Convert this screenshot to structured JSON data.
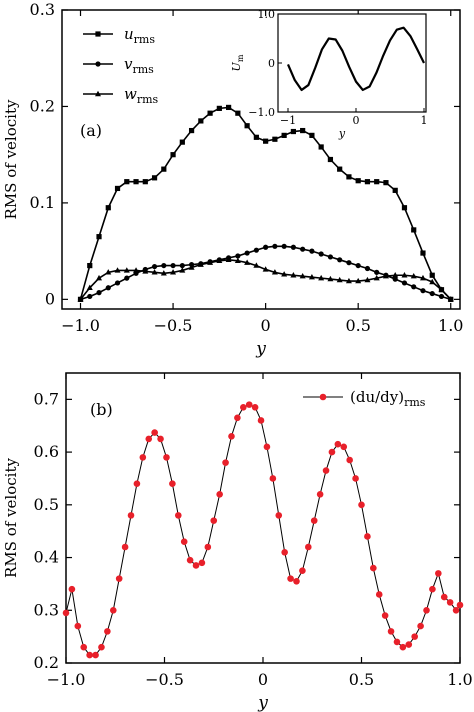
{
  "chart_data": [
    {
      "type": "line",
      "panel_label": "(a)",
      "xlabel": "y",
      "ylabel": "RMS of velocity",
      "xlim": [
        -1.1,
        1.05
      ],
      "ylim": [
        -0.01,
        0.3
      ],
      "xticks": [
        -1.0,
        -0.5,
        0,
        0.5,
        1.0
      ],
      "xtick_labels": [
        "−1.0",
        "−0.5",
        "0",
        "0.5",
        "1.0"
      ],
      "yticks": [
        0,
        0.1,
        0.2,
        0.3
      ],
      "ytick_labels": [
        "0",
        "0.1",
        "0.2",
        "0.3"
      ],
      "legend_position": "top-left",
      "series": [
        {
          "name": "u",
          "name_sub": "rms",
          "marker": "square",
          "x": [
            -1.0,
            -0.95,
            -0.9,
            -0.85,
            -0.8,
            -0.75,
            -0.7,
            -0.65,
            -0.6,
            -0.55,
            -0.5,
            -0.45,
            -0.4,
            -0.35,
            -0.3,
            -0.25,
            -0.2,
            -0.15,
            -0.1,
            -0.05,
            0,
            0.05,
            0.1,
            0.15,
            0.2,
            0.25,
            0.3,
            0.35,
            0.4,
            0.45,
            0.5,
            0.55,
            0.6,
            0.65,
            0.7,
            0.75,
            0.8,
            0.85,
            0.9,
            0.95,
            1.0
          ],
          "y": [
            0,
            0.035,
            0.065,
            0.095,
            0.115,
            0.122,
            0.122,
            0.122,
            0.126,
            0.135,
            0.15,
            0.163,
            0.175,
            0.185,
            0.193,
            0.198,
            0.199,
            0.193,
            0.18,
            0.168,
            0.164,
            0.166,
            0.17,
            0.174,
            0.175,
            0.17,
            0.158,
            0.145,
            0.135,
            0.127,
            0.123,
            0.122,
            0.122,
            0.121,
            0.113,
            0.095,
            0.072,
            0.048,
            0.025,
            0.01,
            0
          ]
        },
        {
          "name": "v",
          "name_sub": "rms",
          "marker": "circle",
          "x": [
            -1.0,
            -0.95,
            -0.9,
            -0.85,
            -0.8,
            -0.75,
            -0.7,
            -0.65,
            -0.6,
            -0.55,
            -0.5,
            -0.45,
            -0.4,
            -0.35,
            -0.3,
            -0.25,
            -0.2,
            -0.15,
            -0.1,
            -0.05,
            0,
            0.05,
            0.1,
            0.15,
            0.2,
            0.25,
            0.3,
            0.35,
            0.4,
            0.45,
            0.5,
            0.55,
            0.6,
            0.65,
            0.7,
            0.75,
            0.8,
            0.85,
            0.9,
            0.95,
            1.0
          ],
          "y": [
            0,
            0.003,
            0.007,
            0.012,
            0.017,
            0.022,
            0.027,
            0.031,
            0.034,
            0.035,
            0.035,
            0.035,
            0.036,
            0.037,
            0.039,
            0.041,
            0.043,
            0.045,
            0.048,
            0.051,
            0.054,
            0.055,
            0.055,
            0.054,
            0.052,
            0.05,
            0.047,
            0.044,
            0.041,
            0.038,
            0.035,
            0.032,
            0.028,
            0.025,
            0.021,
            0.017,
            0.013,
            0.009,
            0.006,
            0.003,
            0
          ]
        },
        {
          "name": "w",
          "name_sub": "rms",
          "marker": "triangle",
          "x": [
            -1.0,
            -0.95,
            -0.9,
            -0.85,
            -0.8,
            -0.75,
            -0.7,
            -0.65,
            -0.6,
            -0.55,
            -0.5,
            -0.45,
            -0.4,
            -0.35,
            -0.3,
            -0.25,
            -0.2,
            -0.15,
            -0.1,
            -0.05,
            0,
            0.05,
            0.1,
            0.15,
            0.2,
            0.25,
            0.3,
            0.35,
            0.4,
            0.45,
            0.5,
            0.55,
            0.6,
            0.65,
            0.7,
            0.75,
            0.8,
            0.85,
            0.9,
            0.95,
            1.0
          ],
          "y": [
            0,
            0.012,
            0.022,
            0.028,
            0.03,
            0.03,
            0.03,
            0.029,
            0.028,
            0.027,
            0.028,
            0.03,
            0.033,
            0.036,
            0.038,
            0.04,
            0.041,
            0.04,
            0.038,
            0.035,
            0.031,
            0.028,
            0.026,
            0.025,
            0.024,
            0.023,
            0.022,
            0.021,
            0.02,
            0.019,
            0.019,
            0.02,
            0.022,
            0.024,
            0.025,
            0.025,
            0.024,
            0.022,
            0.018,
            0.01,
            0
          ]
        }
      ],
      "inset": {
        "ylabel": "U",
        "ylabel_sub": "m",
        "xlabel": "y",
        "xlim": [
          -1,
          1
        ],
        "ylim": [
          -1,
          1
        ],
        "xtick_labels": [
          "−1",
          "0",
          "1"
        ],
        "ytick_labels": [
          "1.0",
          "0",
          "−1.0"
        ],
        "x": [
          -1.0,
          -0.9,
          -0.8,
          -0.7,
          -0.6,
          -0.5,
          -0.4,
          -0.3,
          -0.2,
          -0.1,
          0,
          0.1,
          0.2,
          0.3,
          0.4,
          0.5,
          0.6,
          0.7,
          0.8,
          0.9,
          1.0
        ],
        "y": [
          -0.03,
          -0.35,
          -0.55,
          -0.45,
          -0.1,
          0.28,
          0.5,
          0.48,
          0.25,
          -0.08,
          -0.38,
          -0.55,
          -0.48,
          -0.2,
          0.15,
          0.46,
          0.68,
          0.72,
          0.55,
          0.28,
          0
        ]
      }
    },
    {
      "type": "line",
      "panel_label": "(b)",
      "xlabel": "y",
      "ylabel": "RMS of velocity",
      "xlim": [
        -1.0,
        1.0
      ],
      "ylim": [
        0.2,
        0.75
      ],
      "xticks": [
        -1.0,
        -0.5,
        0,
        0.5,
        1.0
      ],
      "xtick_labels": [
        "−1.0",
        "−0.5",
        "0",
        "0.5",
        "1.0"
      ],
      "yticks": [
        0.2,
        0.3,
        0.4,
        0.5,
        0.6,
        0.7
      ],
      "ytick_labels": [
        "0.2",
        "0.3",
        "0.4",
        "0.5",
        "0.6",
        "0.7"
      ],
      "legend_position": "top-right",
      "series": [
        {
          "name": "(du/dy)",
          "name_sub": "rms",
          "marker": "circle",
          "color": "#e8202a",
          "x": [
            -1.0,
            -0.97,
            -0.94,
            -0.91,
            -0.88,
            -0.85,
            -0.82,
            -0.79,
            -0.76,
            -0.73,
            -0.7,
            -0.67,
            -0.64,
            -0.61,
            -0.58,
            -0.55,
            -0.52,
            -0.49,
            -0.46,
            -0.43,
            -0.4,
            -0.37,
            -0.34,
            -0.31,
            -0.28,
            -0.25,
            -0.22,
            -0.19,
            -0.16,
            -0.13,
            -0.1,
            -0.07,
            -0.04,
            -0.01,
            0.02,
            0.05,
            0.08,
            0.11,
            0.14,
            0.17,
            0.2,
            0.23,
            0.26,
            0.29,
            0.32,
            0.35,
            0.38,
            0.41,
            0.44,
            0.47,
            0.5,
            0.53,
            0.56,
            0.59,
            0.62,
            0.65,
            0.68,
            0.71,
            0.74,
            0.77,
            0.8,
            0.83,
            0.86,
            0.89,
            0.92,
            0.95,
            0.98,
            1.0
          ],
          "y": [
            0.295,
            0.34,
            0.27,
            0.23,
            0.215,
            0.215,
            0.23,
            0.26,
            0.3,
            0.36,
            0.42,
            0.48,
            0.54,
            0.59,
            0.625,
            0.637,
            0.625,
            0.59,
            0.54,
            0.48,
            0.43,
            0.395,
            0.385,
            0.39,
            0.42,
            0.47,
            0.52,
            0.58,
            0.63,
            0.665,
            0.685,
            0.69,
            0.685,
            0.66,
            0.61,
            0.55,
            0.48,
            0.41,
            0.36,
            0.355,
            0.375,
            0.42,
            0.47,
            0.52,
            0.565,
            0.6,
            0.615,
            0.61,
            0.585,
            0.55,
            0.5,
            0.44,
            0.38,
            0.33,
            0.29,
            0.26,
            0.24,
            0.23,
            0.235,
            0.25,
            0.27,
            0.3,
            0.34,
            0.37,
            0.325,
            0.315,
            0.3,
            0.31
          ]
        }
      ]
    }
  ]
}
